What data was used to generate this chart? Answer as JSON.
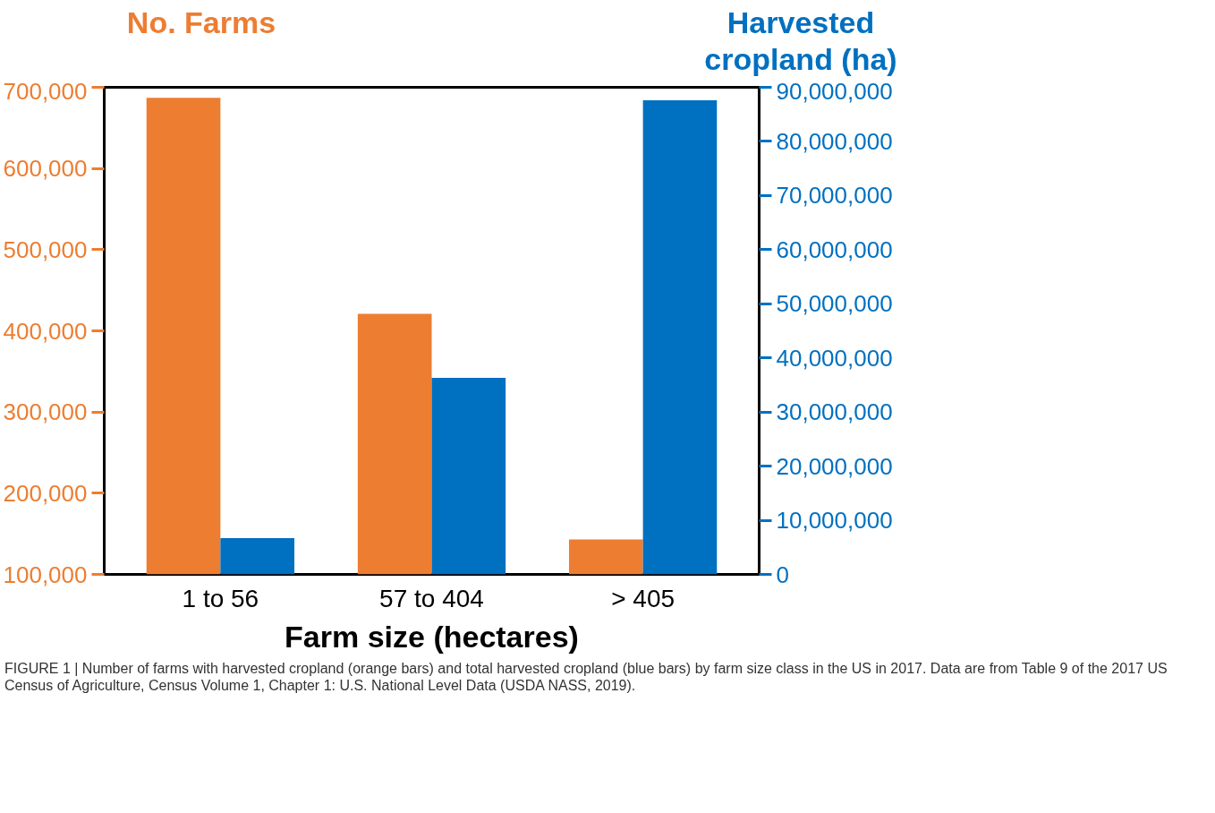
{
  "chart_data": {
    "type": "bar",
    "categories": [
      "1 to 56",
      "57 to 404",
      "> 405"
    ],
    "series": [
      {
        "name": null,
        "color": "#ed7d31",
        "values": [
          687000,
          421000,
          143000
        ]
      },
      {
        "name": null,
        "color": "#0070c0",
        "values": [
          6700000,
          36300000,
          87600000
        ],
        "axis": "y2"
      }
    ],
    "xlabel": "Farm size (hectares)",
    "ylabel": "No. Farms",
    "y2label": "Harvested cropland (ha)",
    "ylim": [
      100000,
      700000
    ],
    "yticks": [
      {
        "value": 100000,
        "label": "100,000"
      },
      {
        "value": 200000,
        "label": "200,000"
      },
      {
        "value": 300000,
        "label": "300,000"
      },
      {
        "value": 400000,
        "label": "400,000"
      },
      {
        "value": 500000,
        "label": "500,000"
      },
      {
        "value": 600000,
        "label": "600,000"
      },
      {
        "value": 700000,
        "label": "700,000"
      }
    ],
    "y2lim": [
      0,
      90000000
    ],
    "y2ticks": [
      {
        "value": 0,
        "label": "0"
      },
      {
        "value": 10000000,
        "label": "10,000,000"
      },
      {
        "value": 20000000,
        "label": "20,000,000"
      },
      {
        "value": 30000000,
        "label": "30,000,000"
      },
      {
        "value": 40000000,
        "label": "40,000,000"
      },
      {
        "value": 50000000,
        "label": "50,000,000"
      },
      {
        "value": 60000000,
        "label": "60,000,000"
      },
      {
        "value": 70000000,
        "label": "70,000,000"
      },
      {
        "value": 80000000,
        "label": "80,000,000"
      },
      {
        "value": 90000000,
        "label": "90,000,000"
      }
    ],
    "grid": false,
    "annotations": [
      "FIGURE 1 | Number of farms with harvested cropland (orange bars) and total harvested cropland (blue bars) by farm size class in the US in 2017. Data are from Table 9 of the 2017 US Census of Agriculture, Census Volume 1, Chapter 1: U.S. National Level Data (USDA NASS, 2019)."
    ]
  }
}
